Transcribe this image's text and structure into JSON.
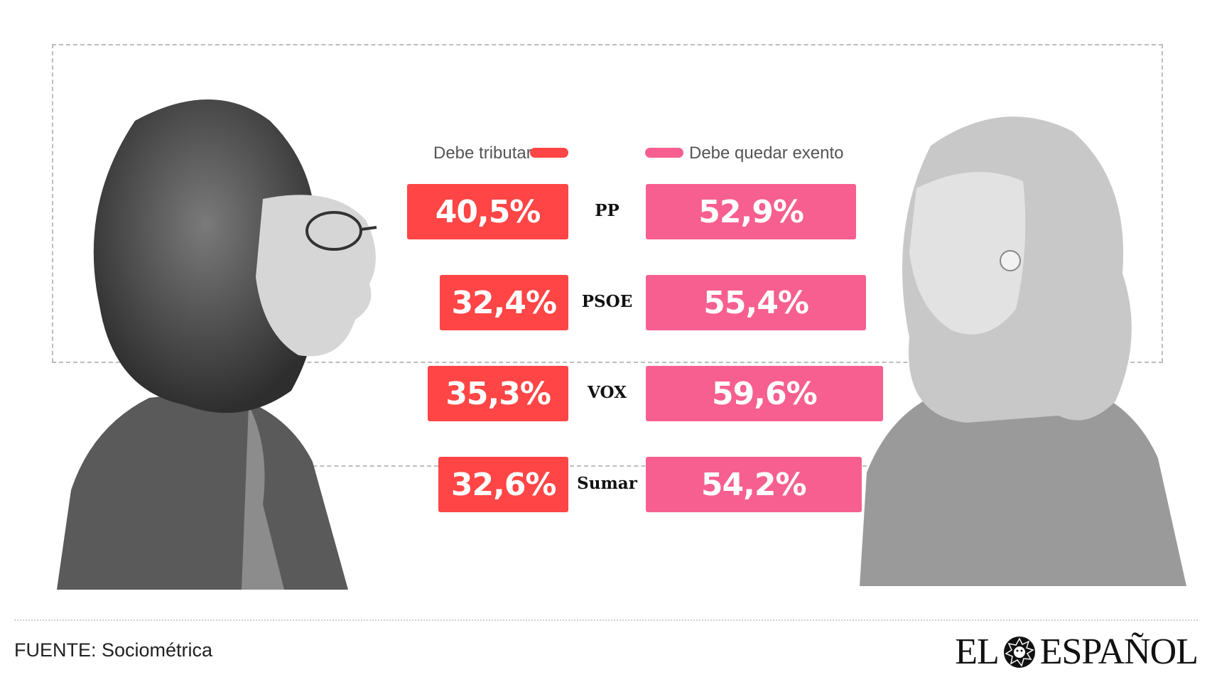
{
  "legend": {
    "left_label": "Debe tributar",
    "right_label": "Debe quedar exento"
  },
  "colors": {
    "tributar": "#ff4545",
    "exento": "#f65f8f"
  },
  "chart_data": {
    "type": "bar",
    "categories": [
      "PP",
      "PSOE",
      "VOX",
      "Sumar"
    ],
    "series": [
      {
        "name": "Debe tributar",
        "values": [
          40.5,
          32.4,
          35.3,
          32.6
        ]
      },
      {
        "name": "Debe quedar exento",
        "values": [
          52.9,
          55.4,
          59.6,
          54.2
        ]
      }
    ],
    "value_labels": {
      "tributar": [
        "40,5%",
        "32,4%",
        "35,3%",
        "32,6%"
      ],
      "exento": [
        "52,9%",
        "55,4%",
        "59,6%",
        "54,2%"
      ]
    },
    "title": "",
    "xlabel": "",
    "ylabel": ""
  },
  "footer": {
    "source": "FUENTE: Sociométrica",
    "logo_left": "EL",
    "logo_right": "ESPAÑOL",
    "logo_icon": "lion-icon"
  }
}
